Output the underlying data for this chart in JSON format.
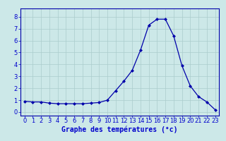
{
  "x": [
    0,
    1,
    2,
    3,
    4,
    5,
    6,
    7,
    8,
    9,
    10,
    11,
    12,
    13,
    14,
    15,
    16,
    17,
    18,
    19,
    20,
    21,
    22,
    23
  ],
  "y": [
    0.9,
    0.85,
    0.85,
    0.75,
    0.7,
    0.7,
    0.7,
    0.7,
    0.75,
    0.8,
    1.0,
    1.8,
    2.6,
    3.5,
    5.2,
    7.3,
    7.8,
    7.8,
    6.4,
    3.9,
    2.2,
    1.3,
    0.85,
    0.2
  ],
  "line_color": "#0000aa",
  "marker": "D",
  "marker_size": 2.0,
  "bg_color": "#cce8e8",
  "grid_color": "#aacccc",
  "xlabel": "Graphe des températures (°c)",
  "xlabel_color": "#0000cc",
  "xlabel_fontsize": 7,
  "tick_color": "#0000cc",
  "tick_fontsize": 6,
  "ylim": [
    -0.3,
    8.7
  ],
  "xlim": [
    -0.5,
    23.5
  ],
  "yticks": [
    0,
    1,
    2,
    3,
    4,
    5,
    6,
    7,
    8
  ],
  "xticks": [
    0,
    1,
    2,
    3,
    4,
    5,
    6,
    7,
    8,
    9,
    10,
    11,
    12,
    13,
    14,
    15,
    16,
    17,
    18,
    19,
    20,
    21,
    22,
    23
  ]
}
